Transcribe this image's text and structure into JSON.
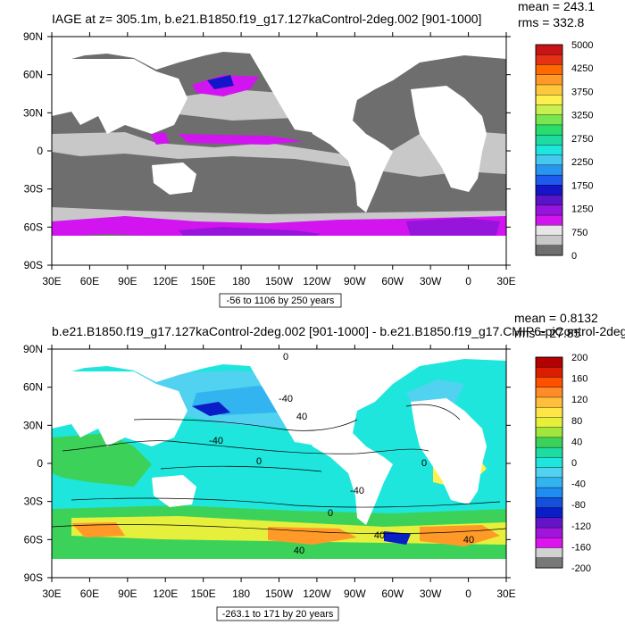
{
  "chart_data": [
    {
      "type": "heatmap",
      "title": "IAGE at z= 305.1m, b.e21.B1850.f19_g17.127kaControl-2deg.002 [901-1000]",
      "stats": {
        "mean": "mean = 243.1",
        "rms": "rms = 332.8"
      },
      "x_ticks": [
        "30E",
        "60E",
        "90E",
        "120E",
        "150E",
        "180",
        "150W",
        "120W",
        "90W",
        "60W",
        "30W",
        "0",
        "30E"
      ],
      "y_ticks": [
        "90N",
        "60N",
        "30N",
        "0",
        "30S",
        "60S",
        "90S"
      ],
      "range_label": "-56 to 1106 by 250 years",
      "colorbar": {
        "labels": [
          "5000",
          "4250",
          "3750",
          "3250",
          "2750",
          "2250",
          "1750",
          "1250",
          "750",
          "0"
        ],
        "colors": [
          "#c81414",
          "#e63214",
          "#ff6a00",
          "#ff9a28",
          "#ffc83c",
          "#fff050",
          "#c8f050",
          "#78e650",
          "#28dc6e",
          "#1edca0",
          "#1ee6dc",
          "#46c8f0",
          "#2896f0",
          "#1e5af0",
          "#1414c8",
          "#5a14c8",
          "#9614dc",
          "#d214f0",
          "#e6e6e6",
          "#c8c8c8",
          "#6e6e6e"
        ]
      },
      "colors": {
        "land": "#ffffff",
        "deep": "#6e6e6e",
        "mid": "#c8c8c8",
        "magenta": "#d214f0",
        "purple": "#9614dc",
        "blue": "#1414c8"
      }
    },
    {
      "type": "heatmap",
      "title": "b.e21.B1850.f19_g17.127kaControl-2deg.002 [901-1000] - b.e21.B1850.f19_g17.CMIP6-piControl-2deg",
      "stats": {
        "mean": "mean = 0.8132",
        "rms": "rms = 27.85"
      },
      "x_ticks": [
        "30E",
        "60E",
        "90E",
        "120E",
        "150E",
        "180",
        "150W",
        "120W",
        "90W",
        "60W",
        "30W",
        "0",
        "30E"
      ],
      "y_ticks": [
        "90N",
        "60N",
        "30N",
        "0",
        "30S",
        "60S",
        "90S"
      ],
      "range_label": "-263.1 to 171 by 20 years",
      "contour_labels": [
        "0",
        "-40",
        "-40",
        "0",
        "0",
        "-40",
        "0",
        "40",
        "40",
        "40",
        "40"
      ],
      "colorbar": {
        "labels": [
          "200",
          "160",
          "120",
          "80",
          "40",
          "0",
          "-40",
          "-80",
          "-120",
          "-160",
          "-200"
        ],
        "colors": [
          "#b40000",
          "#dc1e00",
          "#ff5000",
          "#ff8c28",
          "#ffbe3c",
          "#ffe646",
          "#e6f03c",
          "#a0e63c",
          "#3cd25a",
          "#1edca0",
          "#1ee6dc",
          "#50d2f0",
          "#32b4f0",
          "#1e8cf0",
          "#1450dc",
          "#0a1ec8",
          "#6414c8",
          "#a014dc",
          "#dc14f0",
          "#d2d2d2",
          "#787878"
        ]
      },
      "colors": {
        "land": "#ffffff",
        "ocean": "#1ee6dc",
        "green": "#3cd25a",
        "yellow": "#fff050",
        "orange": "#ff9a28",
        "blue": "#32b4f0",
        "dark": "#0a1ec8"
      }
    }
  ]
}
